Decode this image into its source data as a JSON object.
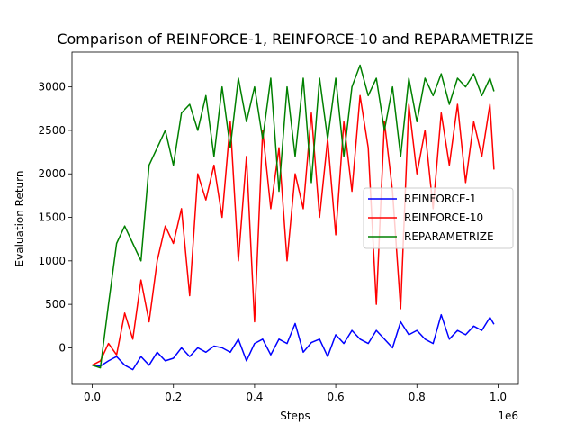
{
  "chart_data": {
    "type": "line",
    "title": "Comparison of REINFORCE-1, REINFORCE-10 and REPARAMETRIZE",
    "xlabel": "Steps",
    "ylabel": "Evaluation Return",
    "x_offset_label": "1e6",
    "xlim": [
      -0.05,
      1.05
    ],
    "ylim": [
      -420,
      3400
    ],
    "xticks": [
      0.0,
      0.2,
      0.4,
      0.6,
      0.8,
      1.0
    ],
    "xtick_labels": [
      "0.0",
      "0.2",
      "0.4",
      "0.6",
      "0.8",
      "1.0"
    ],
    "yticks": [
      0,
      500,
      1000,
      1500,
      2000,
      2500,
      3000
    ],
    "ytick_labels": [
      "0",
      "500",
      "1000",
      "1500",
      "2000",
      "2500",
      "3000"
    ],
    "legend": {
      "position": "center-right"
    },
    "grid": false,
    "series": [
      {
        "name": "REINFORCE-1",
        "color": "#0000ff",
        "x": [
          0.0,
          0.02,
          0.04,
          0.06,
          0.08,
          0.1,
          0.12,
          0.14,
          0.16,
          0.18,
          0.2,
          0.22,
          0.24,
          0.26,
          0.28,
          0.3,
          0.32,
          0.34,
          0.36,
          0.38,
          0.4,
          0.42,
          0.44,
          0.46,
          0.48,
          0.5,
          0.52,
          0.54,
          0.56,
          0.58,
          0.6,
          0.62,
          0.64,
          0.66,
          0.68,
          0.7,
          0.72,
          0.74,
          0.76,
          0.78,
          0.8,
          0.82,
          0.84,
          0.86,
          0.88,
          0.9,
          0.92,
          0.94,
          0.96,
          0.98,
          0.99
        ],
        "values": [
          -200,
          -210,
          -150,
          -100,
          -200,
          -250,
          -100,
          -200,
          -50,
          -150,
          -120,
          0,
          -100,
          0,
          -50,
          20,
          0,
          -50,
          100,
          -150,
          50,
          100,
          -80,
          100,
          50,
          280,
          -50,
          60,
          100,
          -100,
          150,
          50,
          200,
          100,
          50,
          200,
          100,
          0,
          300,
          150,
          200,
          100,
          50,
          380,
          100,
          200,
          150,
          250,
          200,
          350,
          270
        ]
      },
      {
        "name": "REINFORCE-10",
        "color": "#ff0000",
        "x": [
          0.0,
          0.02,
          0.04,
          0.06,
          0.08,
          0.1,
          0.12,
          0.14,
          0.16,
          0.18,
          0.2,
          0.22,
          0.24,
          0.26,
          0.28,
          0.3,
          0.32,
          0.34,
          0.36,
          0.38,
          0.4,
          0.42,
          0.44,
          0.46,
          0.48,
          0.5,
          0.52,
          0.54,
          0.56,
          0.58,
          0.6,
          0.62,
          0.64,
          0.66,
          0.68,
          0.7,
          0.72,
          0.74,
          0.76,
          0.78,
          0.8,
          0.82,
          0.84,
          0.86,
          0.88,
          0.9,
          0.92,
          0.94,
          0.96,
          0.98,
          0.99
        ],
        "values": [
          -200,
          -150,
          50,
          -80,
          400,
          100,
          780,
          300,
          1000,
          1400,
          1200,
          1600,
          600,
          2000,
          1700,
          2100,
          1500,
          2600,
          1000,
          2200,
          300,
          2500,
          1600,
          2300,
          1000,
          2000,
          1600,
          2700,
          1500,
          2400,
          1300,
          2600,
          1800,
          2900,
          2300,
          500,
          2600,
          1800,
          450,
          2800,
          2000,
          2500,
          1600,
          2700,
          2100,
          2800,
          1900,
          2600,
          2200,
          2800,
          2050
        ]
      },
      {
        "name": "REPARAMETRIZE",
        "color": "#008000",
        "x": [
          0.0,
          0.02,
          0.04,
          0.06,
          0.08,
          0.1,
          0.12,
          0.14,
          0.16,
          0.18,
          0.2,
          0.22,
          0.24,
          0.26,
          0.28,
          0.3,
          0.32,
          0.34,
          0.36,
          0.38,
          0.4,
          0.42,
          0.44,
          0.46,
          0.48,
          0.5,
          0.52,
          0.54,
          0.56,
          0.58,
          0.6,
          0.62,
          0.64,
          0.66,
          0.68,
          0.7,
          0.72,
          0.74,
          0.76,
          0.78,
          0.8,
          0.82,
          0.84,
          0.86,
          0.88,
          0.9,
          0.92,
          0.94,
          0.96,
          0.98,
          0.99
        ],
        "values": [
          -200,
          -230,
          500,
          1200,
          1400,
          1200,
          1000,
          2100,
          2300,
          2500,
          2100,
          2700,
          2800,
          2500,
          2900,
          2200,
          3000,
          2300,
          3100,
          2600,
          3000,
          2400,
          3100,
          1800,
          3000,
          2200,
          3100,
          1900,
          3100,
          2400,
          3100,
          2200,
          3000,
          3250,
          2900,
          3100,
          2500,
          3000,
          2200,
          3100,
          2600,
          3100,
          2900,
          3150,
          2800,
          3100,
          3000,
          3150,
          2900,
          3100,
          2950
        ]
      }
    ]
  }
}
